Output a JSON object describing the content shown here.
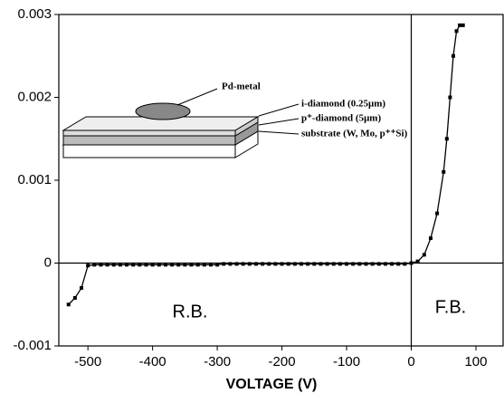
{
  "chart_data": {
    "type": "line",
    "xlabel": "VOLTAGE (V)",
    "x": [
      -530,
      -520,
      -510,
      -500,
      -490,
      -480,
      -470,
      -460,
      -450,
      -440,
      -430,
      -420,
      -410,
      -400,
      -390,
      -380,
      -370,
      -360,
      -350,
      -340,
      -330,
      -320,
      -310,
      -300,
      -290,
      -280,
      -270,
      -260,
      -250,
      -240,
      -230,
      -220,
      -210,
      -200,
      -190,
      -180,
      -170,
      -160,
      -150,
      -140,
      -130,
      -120,
      -110,
      -100,
      -90,
      -80,
      -70,
      -60,
      -50,
      -40,
      -30,
      -20,
      -10,
      0,
      10,
      20,
      30,
      40,
      50,
      55,
      60,
      65,
      70,
      75,
      80
    ],
    "series": [
      {
        "color": "#000000",
        "values": [
          -0.0005,
          -0.00042,
          -0.0003,
          -3e-05,
          -2e-05,
          -2e-05,
          -2e-05,
          -2e-05,
          -2e-05,
          -2e-05,
          -2e-05,
          -2e-05,
          -2e-05,
          -2e-05,
          -2e-05,
          -2e-05,
          -2e-05,
          -2e-05,
          -2e-05,
          -2e-05,
          -2e-05,
          -2e-05,
          -2e-05,
          -2e-05,
          -1e-05,
          -1e-05,
          -1e-05,
          -1e-05,
          -1e-05,
          -1e-05,
          -1e-05,
          -1e-05,
          -1e-05,
          -1e-05,
          -1e-05,
          -1e-05,
          -1e-05,
          -1e-05,
          -1e-05,
          -1e-05,
          -1e-05,
          -1e-05,
          -1e-05,
          -1e-05,
          -1e-05,
          -1e-05,
          -1e-05,
          -1e-05,
          -1e-05,
          -1e-05,
          -1e-05,
          -1e-05,
          -1e-05,
          0,
          2e-05,
          0.0001,
          0.0003,
          0.0006,
          0.0011,
          0.0015,
          0.002,
          0.0025,
          0.0028,
          0.00287,
          0.00287
        ]
      }
    ],
    "xlim": [
      -545,
      142
    ],
    "ylim": [
      -0.001,
      0.003
    ],
    "xticks": [
      -500,
      -400,
      -300,
      -200,
      -100,
      0,
      100
    ],
    "yticks": [
      0.003,
      0.002,
      0.001,
      0,
      -0.001
    ],
    "annotations": [
      "R.B.",
      "F.B."
    ],
    "inset_labels": [
      "Pd-metal",
      "i-diamond (0.25μm)",
      "p⁺-diamond (5μm)",
      "substrate (W, Mo, p⁺⁺Si)"
    ]
  }
}
